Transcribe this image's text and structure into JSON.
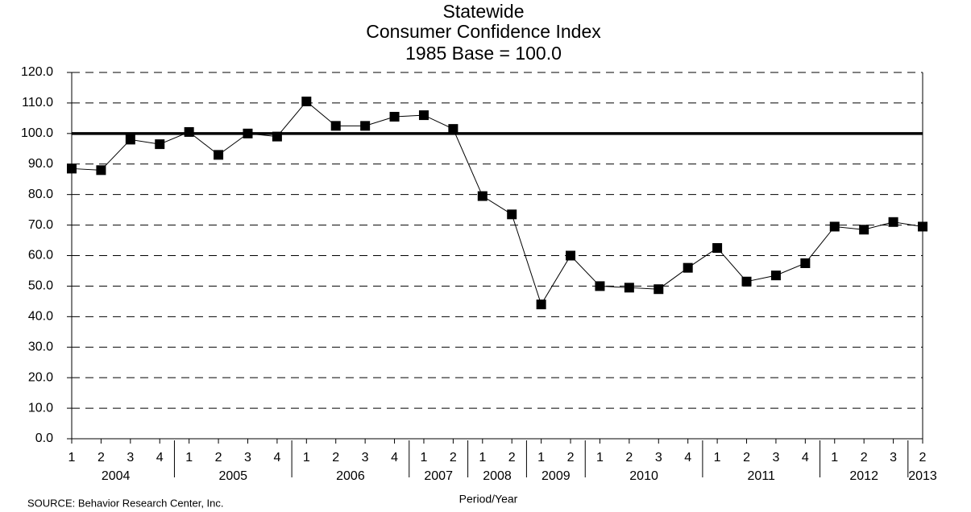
{
  "chart_data": {
    "type": "line",
    "title": [
      "Statewide",
      "Consumer Confidence Index",
      "1985 Base = 100.0"
    ],
    "x_label": "Period/Year",
    "source": "SOURCE: Behavior Research Center, Inc.",
    "color": "#000000",
    "groups": [
      {
        "year": "2004",
        "quarters": [
          "1",
          "2",
          "3",
          "4"
        ],
        "values": [
          88.5,
          88,
          98,
          96.5
        ]
      },
      {
        "year": "2005",
        "quarters": [
          "1",
          "2",
          "3",
          "4"
        ],
        "values": [
          100.5,
          93,
          100,
          99
        ]
      },
      {
        "year": "2006",
        "quarters": [
          "1",
          "2",
          "3",
          "4"
        ],
        "values": [
          110.5,
          102.5,
          102.5,
          105.5
        ]
      },
      {
        "year": "2007",
        "quarters": [
          "1",
          "2"
        ],
        "values": [
          106,
          101.5
        ]
      },
      {
        "year": "2008",
        "quarters": [
          "1",
          "2"
        ],
        "values": [
          79.5,
          73.5
        ]
      },
      {
        "year": "2009",
        "quarters": [
          "1",
          "2"
        ],
        "values": [
          44,
          60
        ]
      },
      {
        "year": "2010",
        "quarters": [
          "1",
          "2",
          "3",
          "4"
        ],
        "values": [
          50,
          49.5,
          49,
          56
        ]
      },
      {
        "year": "2011",
        "quarters": [
          "1",
          "2",
          "3",
          "4"
        ],
        "values": [
          62.5,
          51.5,
          53.5,
          57.5
        ]
      },
      {
        "year": "2012",
        "quarters": [
          "1",
          "2",
          "3"
        ],
        "values": [
          69.5,
          68.5,
          71
        ]
      },
      {
        "year": "2013",
        "quarters": [
          "2"
        ],
        "values": [
          69.5
        ]
      }
    ],
    "reference_line": 100,
    "ylim": [
      0,
      120
    ],
    "yticks": [
      {
        "value": 0,
        "label": "0.0"
      },
      {
        "value": 10,
        "label": "10.0"
      },
      {
        "value": 20,
        "label": "20.0"
      },
      {
        "value": 30,
        "label": "30.0"
      },
      {
        "value": 40,
        "label": "40.0"
      },
      {
        "value": 50,
        "label": "50.0"
      },
      {
        "value": 60,
        "label": "60.0"
      },
      {
        "value": 70,
        "label": "70.0"
      },
      {
        "value": 80,
        "label": "80.0"
      },
      {
        "value": 90,
        "label": "90.0"
      },
      {
        "value": 100,
        "label": "100.0"
      },
      {
        "value": 110,
        "label": "110.0"
      },
      {
        "value": 120,
        "label": "120.0"
      }
    ],
    "grid": true
  }
}
